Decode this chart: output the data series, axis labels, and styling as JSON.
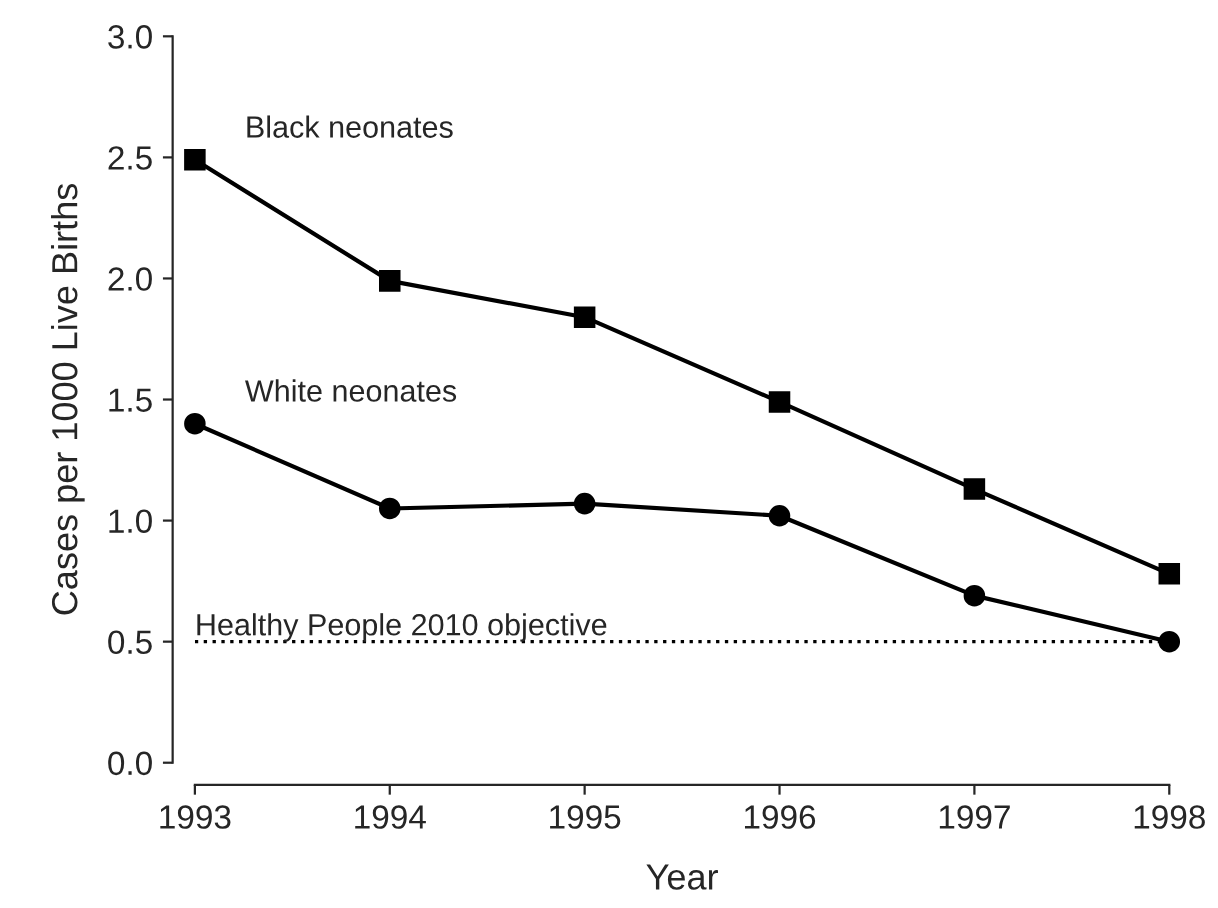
{
  "chart_data": {
    "type": "line",
    "xlabel": "Year",
    "ylabel": "Cases per 1000 Live Births",
    "x": [
      1993,
      1994,
      1995,
      1996,
      1997,
      1998
    ],
    "series": [
      {
        "name": "Black neonates",
        "color": "#000000",
        "marker": "square",
        "values": [
          2.49,
          1.99,
          1.84,
          1.49,
          1.13,
          0.78
        ]
      },
      {
        "name": "White neonates",
        "color": "#000000",
        "marker": "circle",
        "values": [
          1.4,
          1.05,
          1.07,
          1.02,
          0.69,
          0.5
        ]
      }
    ],
    "xlim": [
      1993,
      1998
    ],
    "xticks": [
      1993,
      1994,
      1995,
      1996,
      1997,
      1998
    ],
    "ylim": [
      0,
      3
    ],
    "yticks": [
      {
        "value": 0,
        "label": "0.0"
      },
      {
        "value": 0.5,
        "label": "0.5"
      },
      {
        "value": 1,
        "label": "1.0"
      },
      {
        "value": 1.5,
        "label": "1.5"
      },
      {
        "value": 2,
        "label": "2.0"
      },
      {
        "value": 2.5,
        "label": "2.5"
      },
      {
        "value": 3,
        "label": "3.0"
      }
    ],
    "ref_lines": [
      {
        "axis": "y",
        "value": 0.5,
        "label": "Healthy People 2010 objective",
        "color": "#000000",
        "line_style": "dotted"
      }
    ],
    "grid": false,
    "legend": false,
    "line_style": "solid"
  }
}
